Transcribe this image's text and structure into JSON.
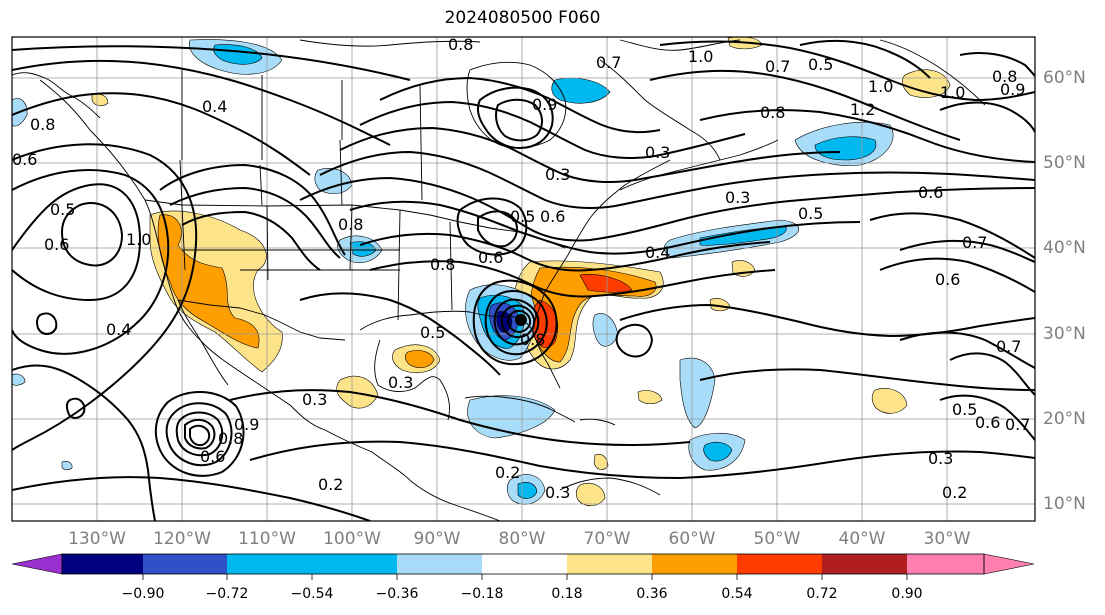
{
  "title": "2024080500 F060",
  "lon_labels": [
    "130°W",
    "120°W",
    "110°W",
    "100°W",
    "90°W",
    "80°W",
    "70°W",
    "60°W",
    "50°W",
    "40°W",
    "30°W"
  ],
  "lat_labels": [
    "60°N",
    "50°N",
    "40°N",
    "30°N",
    "20°N",
    "10°N"
  ],
  "colorbar": {
    "ticks": [
      "−0.90",
      "−0.72",
      "−0.54",
      "−0.36",
      "−0.18",
      "0.18",
      "0.36",
      "0.54",
      "0.72",
      "0.90"
    ],
    "colors": [
      "#9b30d0",
      "#000080",
      "#3050c8",
      "#00b8f0",
      "#a8dcf8",
      "#ffffff",
      "#fde48a",
      "#ff9e00",
      "#ff3c00",
      "#b01e20",
      "#ff80b0"
    ]
  },
  "contour_labels": [
    "0.8",
    "1.0",
    "0.7",
    "0.5",
    "0.7",
    "1.0",
    "0.9",
    "0.8",
    "1.0",
    "0.4",
    "0.8",
    "0.6",
    "0.9",
    "0.3",
    "0.8",
    "1.2",
    "0.5",
    "0.3",
    "0.6",
    "0.7",
    "0.5",
    "0.6",
    "1.0",
    "0.8",
    "0.6",
    "0.4",
    "0.6",
    "0.4",
    "0.5",
    "0.6",
    "0.8",
    "0.3",
    "0.8",
    "0.3",
    "0.3",
    "0.5",
    "0.9",
    "0.8",
    "0.6",
    "0.7",
    "0.5",
    "0.6",
    "0.7",
    "0.3",
    "0.2",
    "0.2",
    "0.3",
    "0.2"
  ]
}
